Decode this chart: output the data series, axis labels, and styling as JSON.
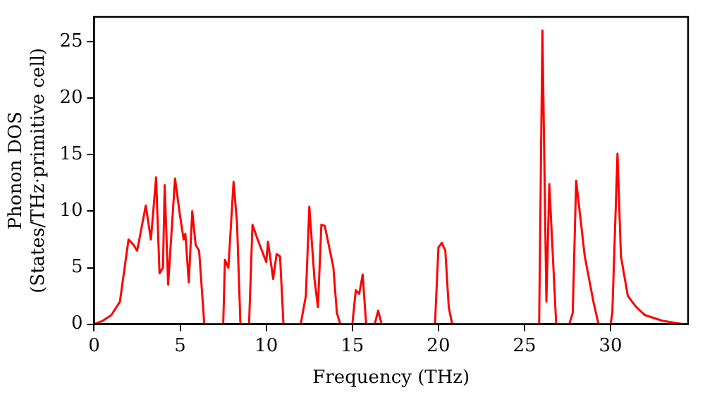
{
  "chart_data": {
    "type": "line",
    "xlabel": "Frequency (THz)",
    "ylabel": "Phonon DOS\n(States/THz·primitive cell)",
    "xlim": [
      0,
      34.5
    ],
    "ylim": [
      0,
      27.2
    ],
    "xticks": [
      0,
      5,
      10,
      15,
      20,
      25,
      30
    ],
    "yticks": [
      0,
      5,
      10,
      15,
      20,
      25
    ],
    "grid": false,
    "legend": false,
    "marker": "none",
    "line_style": "solid",
    "series": [
      {
        "color": "#ff0000",
        "x": [
          0,
          0.5,
          1,
          1.5,
          2,
          2.3,
          2.5,
          3,
          3.3,
          3.6,
          3.8,
          4.0,
          4.1,
          4.3,
          4.7,
          5.0,
          5.2,
          5.3,
          5.5,
          5.7,
          5.9,
          6.1,
          6.4,
          7.5,
          7.6,
          7.8,
          8.1,
          8.3,
          8.5,
          9.0,
          9.2,
          9.5,
          10.0,
          10.1,
          10.4,
          10.6,
          10.8,
          11.0,
          12.0,
          12.3,
          12.5,
          12.8,
          13.0,
          13.2,
          13.4,
          13.9,
          14.1,
          14.3,
          15.0,
          15.2,
          15.4,
          15.6,
          15.8,
          16.3,
          16.5,
          16.7,
          19.8,
          20.0,
          20.2,
          20.4,
          20.6,
          20.8,
          25.85,
          26.04,
          26.27,
          26.44,
          26.84,
          27.6,
          27.8,
          28.0,
          28.5,
          29.0,
          29.3,
          30.0,
          30.1,
          30.4,
          30.6,
          31,
          31.5,
          32,
          33,
          34.2
        ],
        "values": [
          0,
          0.3,
          0.8,
          2,
          7.5,
          7,
          6.5,
          10.5,
          7.5,
          13,
          4.5,
          5,
          12.3,
          3.5,
          12.9,
          9.5,
          7.5,
          8,
          3.7,
          10,
          7,
          6.5,
          0,
          0,
          5.7,
          5,
          12.6,
          9,
          0,
          0,
          8.8,
          7.5,
          5.5,
          7.3,
          4,
          6.2,
          6,
          0,
          0,
          2.5,
          10.4,
          4,
          1.5,
          8.8,
          8.7,
          5,
          1,
          0,
          0,
          3,
          2.7,
          4.4,
          0,
          0,
          1.2,
          0,
          0,
          6.8,
          7.2,
          6.5,
          1.5,
          0,
          0,
          26,
          2,
          12.4,
          0,
          0,
          1,
          12.7,
          6,
          2,
          0,
          0,
          1,
          15.1,
          6,
          2.5,
          1.5,
          0.8,
          0.3,
          0
        ]
      }
    ]
  }
}
